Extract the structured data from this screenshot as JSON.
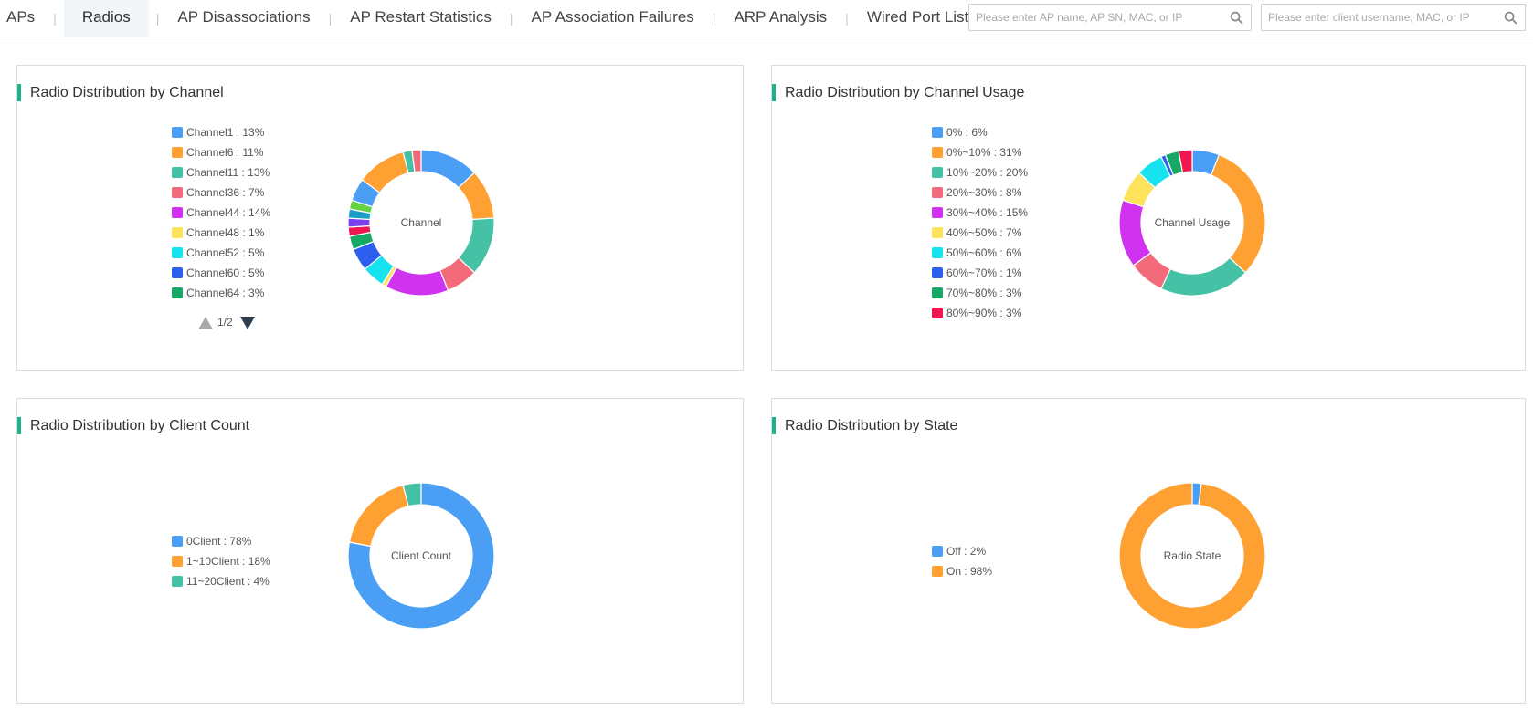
{
  "nav": {
    "tabs": [
      {
        "label": "APs"
      },
      {
        "label": "Radios"
      },
      {
        "label": "AP Disassociations"
      },
      {
        "label": "AP Restart Statistics"
      },
      {
        "label": "AP Association Failures"
      },
      {
        "label": "ARP Analysis"
      },
      {
        "label": "Wired Port List"
      }
    ],
    "active_tab": "Radios",
    "separator": "|",
    "ap_search": {
      "placeholder": "Please enter AP name, AP SN, MAC, or IP",
      "icon": "search-icon"
    },
    "client_search": {
      "placeholder": "Please enter client username, MAC, or IP",
      "icon": "search-icon"
    }
  },
  "theme": {
    "accent": "#19b48e"
  },
  "panels": {
    "channel": {
      "title": "Radio Distribution by Channel",
      "center_label": "Channel",
      "legend": [
        {
          "label": "Channel1 : 13%",
          "color": "#4a9ff5"
        },
        {
          "label": "Channel6 : 11%",
          "color": "#ffa033"
        },
        {
          "label": "Channel11 : 13%",
          "color": "#45c2a5"
        },
        {
          "label": "Channel36 : 7%",
          "color": "#f36b7a"
        },
        {
          "label": "Channel44 : 14%",
          "color": "#cf33f0"
        },
        {
          "label": "Channel48 : 1%",
          "color": "#fde35c"
        },
        {
          "label": "Channel52 : 5%",
          "color": "#16e3ef"
        },
        {
          "label": "Channel60 : 5%",
          "color": "#2c5ff0"
        },
        {
          "label": "Channel64 : 3%",
          "color": "#18a865"
        }
      ],
      "pager": {
        "text": "1/2"
      }
    },
    "channel_usage": {
      "title": "Radio Distribution by Channel Usage",
      "center_label": "Channel Usage",
      "legend": [
        {
          "label": "0% : 6%",
          "color": "#4a9ff5"
        },
        {
          "label": "0%~10% : 31%",
          "color": "#ffa033"
        },
        {
          "label": "10%~20% : 20%",
          "color": "#45c2a5"
        },
        {
          "label": "20%~30% : 8%",
          "color": "#f36b7a"
        },
        {
          "label": "30%~40% : 15%",
          "color": "#cf33f0"
        },
        {
          "label": "40%~50% : 7%",
          "color": "#fde35c"
        },
        {
          "label": "50%~60% : 6%",
          "color": "#16e3ef"
        },
        {
          "label": "60%~70% : 1%",
          "color": "#2c5ff0"
        },
        {
          "label": "70%~80% : 3%",
          "color": "#18a865"
        },
        {
          "label": "80%~90% : 3%",
          "color": "#f0164f"
        }
      ]
    },
    "client_count": {
      "title": "Radio Distribution by Client Count",
      "center_label": "Client Count",
      "legend": [
        {
          "label": "0Client : 78%",
          "color": "#4a9ff5"
        },
        {
          "label": "1~10Client : 18%",
          "color": "#ffa033"
        },
        {
          "label": "11~20Client : 4%",
          "color": "#45c2a5"
        }
      ]
    },
    "state": {
      "title": "Radio Distribution by State",
      "center_label": "Radio State",
      "legend": [
        {
          "label": "Off : 2%",
          "color": "#4a9ff5"
        },
        {
          "label": "On : 98%",
          "color": "#ffa033"
        }
      ]
    }
  },
  "chart_data": [
    {
      "type": "pie",
      "title": "Radio Distribution by Channel",
      "center_label": "Channel",
      "slices": [
        {
          "label": "Channel1",
          "value": 13,
          "color": "#4a9ff5"
        },
        {
          "label": "Channel6",
          "value": 11,
          "color": "#ffa033"
        },
        {
          "label": "Channel11",
          "value": 13,
          "color": "#45c2a5"
        },
        {
          "label": "Channel36",
          "value": 7,
          "color": "#f36b7a"
        },
        {
          "label": "Channel44",
          "value": 14,
          "color": "#cf33f0"
        },
        {
          "label": "Channel48",
          "value": 1,
          "color": "#fde35c"
        },
        {
          "label": "Channel52",
          "value": 5,
          "color": "#16e3ef"
        },
        {
          "label": "Channel60",
          "value": 5,
          "color": "#2c5ff0"
        },
        {
          "label": "Channel64",
          "value": 3,
          "color": "#18a865"
        },
        {
          "label": "",
          "value": 2,
          "color": "#f0164f"
        },
        {
          "label": "",
          "value": 2,
          "color": "#7b3ff2"
        },
        {
          "label": "",
          "value": 2,
          "color": "#1aa0c8"
        },
        {
          "label": "",
          "value": 2,
          "color": "#65d244"
        },
        {
          "label": "",
          "value": 5,
          "color": "#4a9ff5"
        },
        {
          "label": "",
          "value": 11,
          "color": "#ffa033"
        },
        {
          "label": "",
          "value": 2,
          "color": "#45c2a5"
        },
        {
          "label": "",
          "value": 2,
          "color": "#f36b7a"
        }
      ],
      "donut": true
    },
    {
      "type": "pie",
      "title": "Radio Distribution by Channel Usage",
      "center_label": "Channel Usage",
      "slices": [
        {
          "label": "0%",
          "value": 6,
          "color": "#4a9ff5"
        },
        {
          "label": "0%~10%",
          "value": 31,
          "color": "#ffa033"
        },
        {
          "label": "10%~20%",
          "value": 20,
          "color": "#45c2a5"
        },
        {
          "label": "20%~30%",
          "value": 8,
          "color": "#f36b7a"
        },
        {
          "label": "30%~40%",
          "value": 15,
          "color": "#cf33f0"
        },
        {
          "label": "40%~50%",
          "value": 7,
          "color": "#fde35c"
        },
        {
          "label": "50%~60%",
          "value": 6,
          "color": "#16e3ef"
        },
        {
          "label": "60%~70%",
          "value": 1,
          "color": "#2c5ff0"
        },
        {
          "label": "70%~80%",
          "value": 3,
          "color": "#18a865"
        },
        {
          "label": "80%~90%",
          "value": 3,
          "color": "#f0164f"
        }
      ],
      "donut": true
    },
    {
      "type": "pie",
      "title": "Radio Distribution by Client Count",
      "center_label": "Client Count",
      "slices": [
        {
          "label": "0Client",
          "value": 78,
          "color": "#4a9ff5"
        },
        {
          "label": "1~10Client",
          "value": 18,
          "color": "#ffa033"
        },
        {
          "label": "11~20Client",
          "value": 4,
          "color": "#45c2a5"
        }
      ],
      "donut": true
    },
    {
      "type": "pie",
      "title": "Radio Distribution by State",
      "center_label": "Radio State",
      "slices": [
        {
          "label": "Off",
          "value": 2,
          "color": "#4a9ff5"
        },
        {
          "label": "On",
          "value": 98,
          "color": "#ffa033"
        }
      ],
      "donut": true
    }
  ]
}
